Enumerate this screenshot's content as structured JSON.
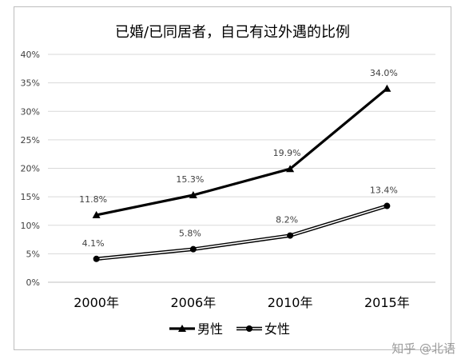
{
  "chart_data": {
    "type": "line",
    "title": "已婚/已同居者，自己有过外遇的比例",
    "categories": [
      "2000年",
      "2006年",
      "2010年",
      "2015年"
    ],
    "series": [
      {
        "name": "男性",
        "values": [
          11.8,
          15.3,
          19.9,
          34.0
        ],
        "labels": [
          "11.8%",
          "15.3%",
          "19.9%",
          "34.0%"
        ],
        "marker": "triangle",
        "style": "solid"
      },
      {
        "name": "女性",
        "values": [
          4.1,
          5.8,
          8.2,
          13.4
        ],
        "labels": [
          "4.1%",
          "5.8%",
          "8.2%",
          "13.4%"
        ],
        "marker": "circle",
        "style": "double"
      }
    ],
    "yticks": [
      "0%",
      "5%",
      "10%",
      "15%",
      "20%",
      "25%",
      "30%",
      "35%",
      "40%"
    ],
    "ylim": [
      0,
      40
    ],
    "grid": true,
    "legend": "bottom"
  },
  "watermark": "知乎 @北语",
  "colors": {
    "line": "#000000",
    "grid": "#d9d9d9",
    "text": "#404040"
  }
}
